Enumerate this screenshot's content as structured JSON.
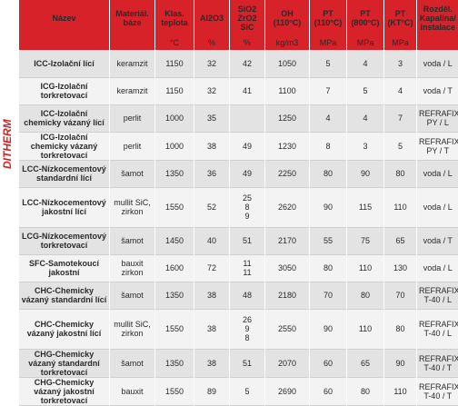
{
  "brand": "DITHERM",
  "table": {
    "headers": [
      "Název",
      "Materiál. báze",
      "Klas. teplota",
      "Al2O3",
      "SiO2 ZrO2 SiC",
      "OH (110°C)",
      "PT (110°C)",
      "PT (800°C)",
      "PT (KT°C)",
      "Rozděl. Kapalina/ instalace"
    ],
    "units": [
      "",
      "",
      "°C",
      "%",
      "%",
      "kg/m3",
      "MPa",
      "MPa",
      "MPa",
      ""
    ],
    "rows": [
      {
        "name": "ICC-Izolační lící",
        "base": "keramzit",
        "temp": "1150",
        "al2o3": "32",
        "sio2": "42",
        "oh": "1050",
        "pt110": "5",
        "pt800": "4",
        "ptkt": "3",
        "inst": "voda / L"
      },
      {
        "name": "ICG-Izolační torkretovací",
        "base": "keramzit",
        "temp": "1150",
        "al2o3": "32",
        "sio2": "41",
        "oh": "1100",
        "pt110": "7",
        "pt800": "5",
        "ptkt": "4",
        "inst": "voda / T"
      },
      {
        "name": "ICC-Izolační chemicky vázaný lící",
        "base": "perlit",
        "temp": "1000",
        "al2o3": "35",
        "sio2": "",
        "oh": "1250",
        "pt110": "4",
        "pt800": "4",
        "ptkt": "7",
        "inst": "REFRAFIX PY / L"
      },
      {
        "name": "ICG-Izolační chemicky vázaný torkretovací",
        "base": "perlit",
        "temp": "1000",
        "al2o3": "38",
        "sio2": "49",
        "oh": "1230",
        "pt110": "8",
        "pt800": "3",
        "ptkt": "5",
        "inst": "REFRAFIX PY / T"
      },
      {
        "name": "LCC-Nízkocementový standardní lící",
        "base": "šamot",
        "temp": "1350",
        "al2o3": "36",
        "sio2": "49",
        "oh": "2250",
        "pt110": "80",
        "pt800": "90",
        "ptkt": "80",
        "inst": "voda / L"
      },
      {
        "name": "LCC-Nízkocementový jakostní lící",
        "base": "mullit SiC, zirkon",
        "temp": "1550",
        "al2o3": "52",
        "sio2": "25 8 9",
        "oh": "2620",
        "pt110": "90",
        "pt800": "115",
        "ptkt": "110",
        "inst": "voda / L"
      },
      {
        "name": "LCG-Nízkocementový torkretovací",
        "base": "šamot",
        "temp": "1450",
        "al2o3": "40",
        "sio2": "51",
        "oh": "2170",
        "pt110": "55",
        "pt800": "75",
        "ptkt": "65",
        "inst": "voda / T"
      },
      {
        "name": "SFC-Samotekoucí jakostní",
        "base": "bauxit zirkon",
        "temp": "1600",
        "al2o3": "72",
        "sio2": "11 11",
        "oh": "3050",
        "pt110": "80",
        "pt800": "110",
        "ptkt": "130",
        "inst": "voda / L"
      },
      {
        "name": "CHC-Chemicky vázaný standardní lící",
        "base": "šamot",
        "temp": "1350",
        "al2o3": "38",
        "sio2": "48",
        "oh": "2180",
        "pt110": "70",
        "pt800": "80",
        "ptkt": "70",
        "inst": "REFRAFIX T-40 / L"
      },
      {
        "name": "CHC-Chemicky vázaný jakostní lící",
        "base": "mullit SiC, zirkon",
        "temp": "1550",
        "al2o3": "38",
        "sio2": "26 9 8",
        "oh": "2550",
        "pt110": "90",
        "pt800": "110",
        "ptkt": "80",
        "inst": "REFRAFIX T-40 / L"
      },
      {
        "name": "CHG-Chemicky vázaný standardní torkretovací",
        "base": "šamot",
        "temp": "1350",
        "al2o3": "38",
        "sio2": "51",
        "oh": "2070",
        "pt110": "60",
        "pt800": "65",
        "ptkt": "90",
        "inst": "REFRAFIX T-40 / T"
      },
      {
        "name": "CHG-Chemicky vázaný jakostní torkretovací",
        "base": "bauxit",
        "temp": "1550",
        "al2o3": "89",
        "sio2": "5",
        "oh": "2690",
        "pt110": "60",
        "pt800": "80",
        "ptkt": "110",
        "inst": "REFRAFIX T-40 / T"
      }
    ]
  },
  "colors": {
    "header": "#d7222a",
    "brand": "#d71e1e",
    "row_odd": "#e3e3e3",
    "row_even": "#f3f3f3"
  }
}
